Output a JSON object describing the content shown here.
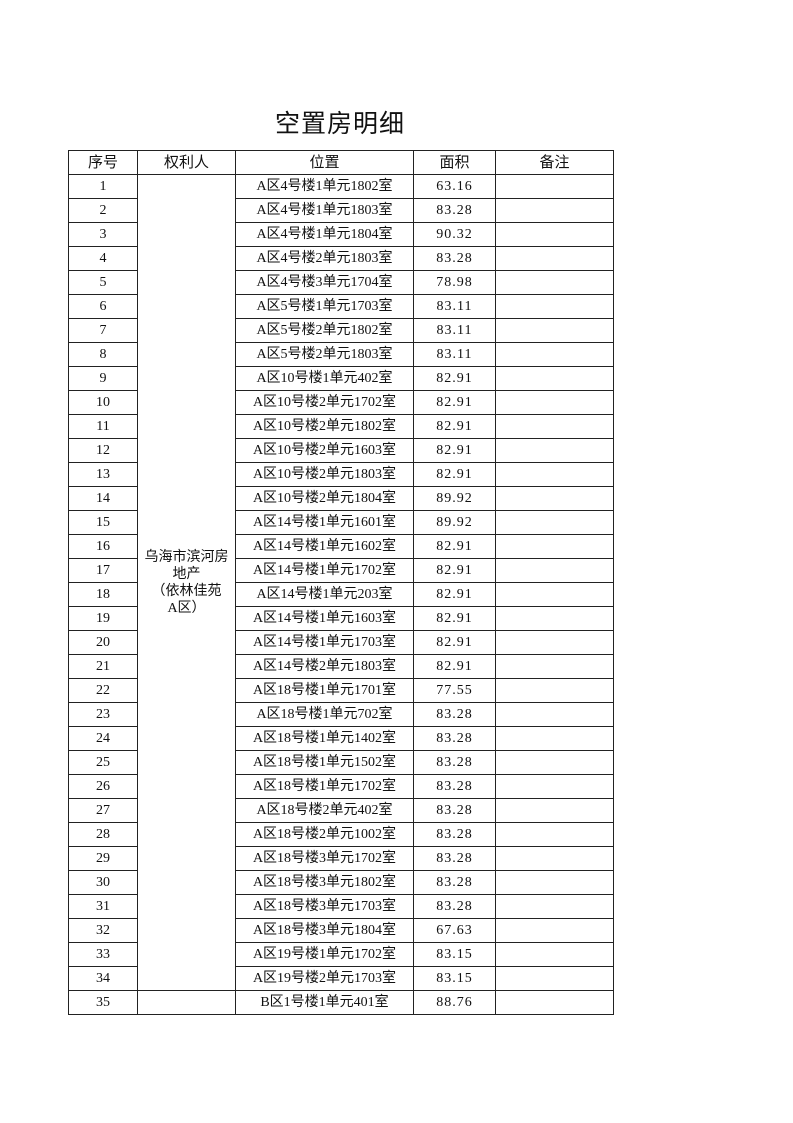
{
  "title": "空置房明细",
  "table": {
    "headers": [
      "序号",
      "权利人",
      "位置",
      "面积",
      "备注"
    ],
    "owner_lines": [
      "乌海市滨河房",
      "地产",
      "（依林佳苑",
      "A区）"
    ],
    "rows": [
      [
        1,
        "A区4号楼1单元1802室",
        63.16
      ],
      [
        2,
        "A区4号楼1单元1803室",
        83.28
      ],
      [
        3,
        "A区4号楼1单元1804室",
        90.32
      ],
      [
        4,
        "A区4号楼2单元1803室",
        83.28
      ],
      [
        5,
        "A区4号楼3单元1704室",
        78.98
      ],
      [
        6,
        "A区5号楼1单元1703室",
        83.11
      ],
      [
        7,
        "A区5号楼2单元1802室",
        83.11
      ],
      [
        8,
        "A区5号楼2单元1803室",
        83.11
      ],
      [
        9,
        "A区10号楼1单元402室",
        82.91
      ],
      [
        10,
        "A区10号楼2单元1702室",
        82.91
      ],
      [
        11,
        "A区10号楼2单元1802室",
        82.91
      ],
      [
        12,
        "A区10号楼2单元1603室",
        82.91
      ],
      [
        13,
        "A区10号楼2单元1803室",
        82.91
      ],
      [
        14,
        "A区10号楼2单元1804室",
        89.92
      ],
      [
        15,
        "A区14号楼1单元1601室",
        89.92
      ],
      [
        16,
        "A区14号楼1单元1602室",
        82.91
      ],
      [
        17,
        "A区14号楼1单元1702室",
        82.91
      ],
      [
        18,
        "A区14号楼1单元203室",
        82.91
      ],
      [
        19,
        "A区14号楼1单元1603室",
        82.91
      ],
      [
        20,
        "A区14号楼1单元1703室",
        82.91
      ],
      [
        21,
        "A区14号楼2单元1803室",
        82.91
      ],
      [
        22,
        "A区18号楼1单元1701室",
        77.55
      ],
      [
        23,
        "A区18号楼1单元702室",
        83.28
      ],
      [
        24,
        "A区18号楼1单元1402室",
        83.28
      ],
      [
        25,
        "A区18号楼1单元1502室",
        83.28
      ],
      [
        26,
        "A区18号楼1单元1702室",
        83.28
      ],
      [
        27,
        "A区18号楼2单元402室",
        83.28
      ],
      [
        28,
        "A区18号楼2单元1002室",
        83.28
      ],
      [
        29,
        "A区18号楼3单元1702室",
        83.28
      ],
      [
        30,
        "A区18号楼3单元1802室",
        83.28
      ],
      [
        31,
        "A区18号楼3单元1703室",
        83.28
      ],
      [
        32,
        "A区18号楼3单元1804室",
        67.63
      ],
      [
        33,
        "A区19号楼1单元1702室",
        83.15
      ],
      [
        34,
        "A区19号楼2单元1703室",
        83.15
      ],
      [
        35,
        "B区1号楼1单元401室",
        88.76
      ]
    ]
  }
}
